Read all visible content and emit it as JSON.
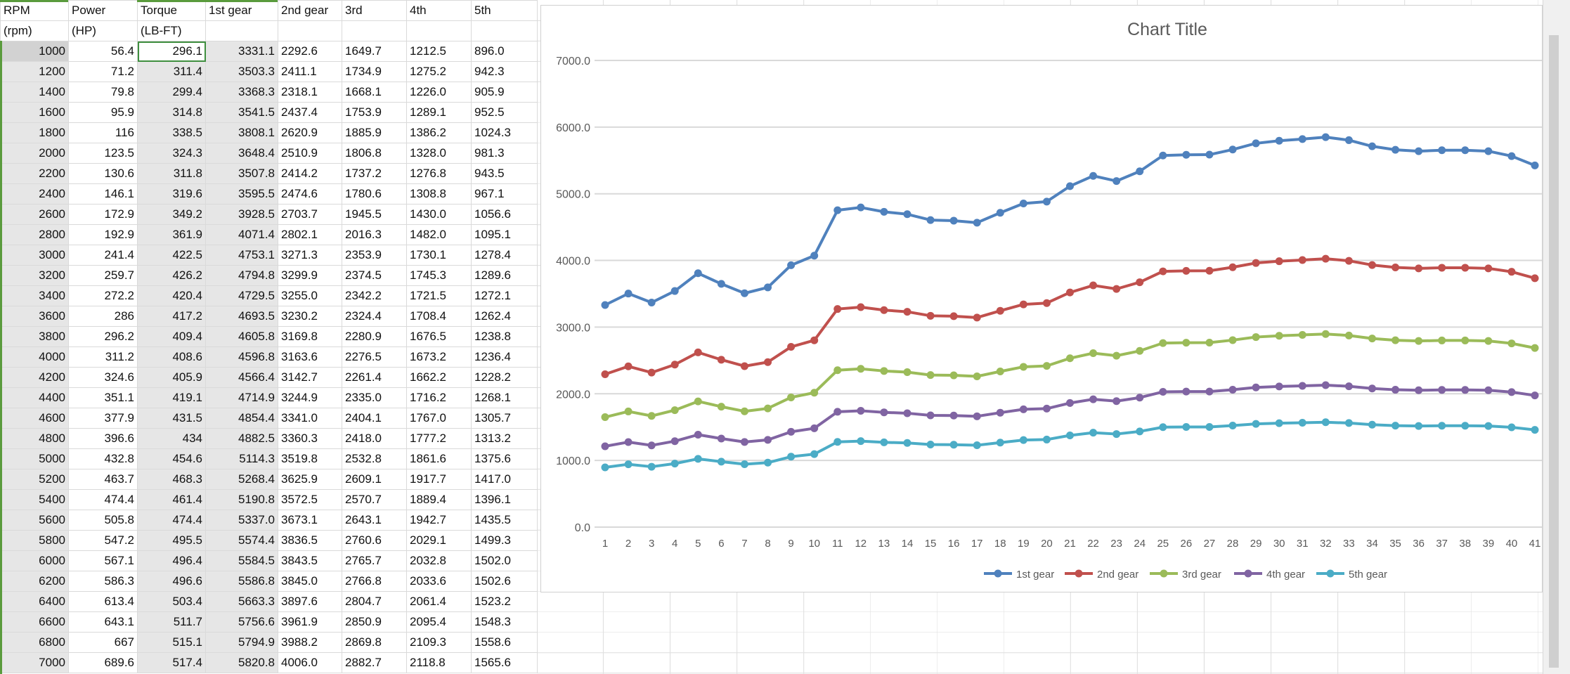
{
  "sheet": {
    "headers_row1": [
      "RPM",
      "Power",
      "Torque",
      "1st gear",
      "2nd gear",
      "3rd",
      "4th",
      "5th"
    ],
    "headers_row2": [
      "(rpm)",
      "(HP)",
      "(LB-FT)",
      "",
      "",
      "",
      "",
      ""
    ],
    "rows": [
      [
        "1000",
        "56.4",
        "296.1",
        "3331.1",
        "2292.6",
        "1649.7",
        "1212.5",
        "896.0"
      ],
      [
        "1200",
        "71.2",
        "311.4",
        "3503.3",
        "2411.1",
        "1734.9",
        "1275.2",
        "942.3"
      ],
      [
        "1400",
        "79.8",
        "299.4",
        "3368.3",
        "2318.1",
        "1668.1",
        "1226.0",
        "905.9"
      ],
      [
        "1600",
        "95.9",
        "314.8",
        "3541.5",
        "2437.4",
        "1753.9",
        "1289.1",
        "952.5"
      ],
      [
        "1800",
        "116",
        "338.5",
        "3808.1",
        "2620.9",
        "1885.9",
        "1386.2",
        "1024.3"
      ],
      [
        "2000",
        "123.5",
        "324.3",
        "3648.4",
        "2510.9",
        "1806.8",
        "1328.0",
        "981.3"
      ],
      [
        "2200",
        "130.6",
        "311.8",
        "3507.8",
        "2414.2",
        "1737.2",
        "1276.8",
        "943.5"
      ],
      [
        "2400",
        "146.1",
        "319.6",
        "3595.5",
        "2474.6",
        "1780.6",
        "1308.8",
        "967.1"
      ],
      [
        "2600",
        "172.9",
        "349.2",
        "3928.5",
        "2703.7",
        "1945.5",
        "1430.0",
        "1056.6"
      ],
      [
        "2800",
        "192.9",
        "361.9",
        "4071.4",
        "2802.1",
        "2016.3",
        "1482.0",
        "1095.1"
      ],
      [
        "3000",
        "241.4",
        "422.5",
        "4753.1",
        "3271.3",
        "2353.9",
        "1730.1",
        "1278.4"
      ],
      [
        "3200",
        "259.7",
        "426.2",
        "4794.8",
        "3299.9",
        "2374.5",
        "1745.3",
        "1289.6"
      ],
      [
        "3400",
        "272.2",
        "420.4",
        "4729.5",
        "3255.0",
        "2342.2",
        "1721.5",
        "1272.1"
      ],
      [
        "3600",
        "286",
        "417.2",
        "4693.5",
        "3230.2",
        "2324.4",
        "1708.4",
        "1262.4"
      ],
      [
        "3800",
        "296.2",
        "409.4",
        "4605.8",
        "3169.8",
        "2280.9",
        "1676.5",
        "1238.8"
      ],
      [
        "4000",
        "311.2",
        "408.6",
        "4596.8",
        "3163.6",
        "2276.5",
        "1673.2",
        "1236.4"
      ],
      [
        "4200",
        "324.6",
        "405.9",
        "4566.4",
        "3142.7",
        "2261.4",
        "1662.2",
        "1228.2"
      ],
      [
        "4400",
        "351.1",
        "419.1",
        "4714.9",
        "3244.9",
        "2335.0",
        "1716.2",
        "1268.1"
      ],
      [
        "4600",
        "377.9",
        "431.5",
        "4854.4",
        "3341.0",
        "2404.1",
        "1767.0",
        "1305.7"
      ],
      [
        "4800",
        "396.6",
        "434",
        "4882.5",
        "3360.3",
        "2418.0",
        "1777.2",
        "1313.2"
      ],
      [
        "5000",
        "432.8",
        "454.6",
        "5114.3",
        "3519.8",
        "2532.8",
        "1861.6",
        "1375.6"
      ],
      [
        "5200",
        "463.7",
        "468.3",
        "5268.4",
        "3625.9",
        "2609.1",
        "1917.7",
        "1417.0"
      ],
      [
        "5400",
        "474.4",
        "461.4",
        "5190.8",
        "3572.5",
        "2570.7",
        "1889.4",
        "1396.1"
      ],
      [
        "5600",
        "505.8",
        "474.4",
        "5337.0",
        "3673.1",
        "2643.1",
        "1942.7",
        "1435.5"
      ],
      [
        "5800",
        "547.2",
        "495.5",
        "5574.4",
        "3836.5",
        "2760.6",
        "2029.1",
        "1499.3"
      ],
      [
        "6000",
        "567.1",
        "496.4",
        "5584.5",
        "3843.5",
        "2765.7",
        "2032.8",
        "1502.0"
      ],
      [
        "6200",
        "586.3",
        "496.6",
        "5586.8",
        "3845.0",
        "2766.8",
        "2033.6",
        "1502.6"
      ],
      [
        "6400",
        "613.4",
        "503.4",
        "5663.3",
        "3897.6",
        "2804.7",
        "2061.4",
        "1523.2"
      ],
      [
        "6600",
        "643.1",
        "511.7",
        "5756.6",
        "3961.9",
        "2850.9",
        "2095.4",
        "1548.3"
      ],
      [
        "6800",
        "667",
        "515.1",
        "5794.9",
        "3988.2",
        "2869.8",
        "2109.3",
        "1558.6"
      ],
      [
        "7000",
        "689.6",
        "517.4",
        "5820.8",
        "4006.0",
        "2882.7",
        "2118.8",
        "1565.6"
      ]
    ]
  },
  "chart_data": {
    "type": "line",
    "title": "Chart Title",
    "xlabel": "",
    "ylabel": "",
    "x": [
      1,
      2,
      3,
      4,
      5,
      6,
      7,
      8,
      9,
      10,
      11,
      12,
      13,
      14,
      15,
      16,
      17,
      18,
      19,
      20,
      21,
      22,
      23,
      24,
      25,
      26,
      27,
      28,
      29,
      30,
      31,
      32,
      33,
      34,
      35,
      36,
      37,
      38,
      39,
      40,
      41
    ],
    "ylim": [
      0,
      7000
    ],
    "yticks": [
      "0.0",
      "1000.0",
      "2000.0",
      "3000.0",
      "4000.0",
      "5000.0",
      "6000.0",
      "7000.0"
    ],
    "grid": true,
    "legend_position": "bottom",
    "series": [
      {
        "name": "1st gear",
        "color": "#4f81bd",
        "values": [
          3331.1,
          3503.3,
          3368.3,
          3541.5,
          3808.1,
          3648.4,
          3507.8,
          3595.5,
          3928.5,
          4071.4,
          4753.1,
          4794.8,
          4729.5,
          4693.5,
          4605.8,
          4596.8,
          4566.4,
          4714.9,
          4854.4,
          4882.5,
          5114.3,
          5268.4,
          5190.8,
          5337.0,
          5574.4,
          5584.5,
          5586.8,
          5663.3,
          5756.6,
          5794.9,
          5820.8,
          5849,
          5804,
          5712,
          5660,
          5639,
          5653,
          5653,
          5639,
          5565,
          5425
        ]
      },
      {
        "name": "2nd gear",
        "color": "#c0504d",
        "values": [
          2292.6,
          2411.1,
          2318.1,
          2437.4,
          2620.9,
          2510.9,
          2414.2,
          2474.6,
          2703.7,
          2802.1,
          3271.3,
          3299.9,
          3255.0,
          3230.2,
          3169.8,
          3163.6,
          3142.7,
          3244.9,
          3341.0,
          3360.3,
          3519.8,
          3625.9,
          3572.5,
          3673.1,
          3836.5,
          3843.5,
          3845.0,
          3897.6,
          3961.9,
          3988.2,
          4006.0,
          4025.5,
          3994.5,
          3931.2,
          3895.4,
          3880.9,
          3890.6,
          3890.6,
          3880.9,
          3830.0,
          3733.6
        ]
      },
      {
        "name": "3rd gear",
        "color": "#9bbb59",
        "values": [
          1649.7,
          1734.9,
          1668.1,
          1753.9,
          1885.9,
          1806.8,
          1737.2,
          1780.6,
          1945.5,
          2016.3,
          2353.9,
          2374.5,
          2342.2,
          2324.4,
          2280.9,
          2276.5,
          2261.4,
          2335.0,
          2404.1,
          2418.0,
          2532.8,
          2609.1,
          2570.7,
          2643.1,
          2760.6,
          2765.7,
          2766.8,
          2804.7,
          2850.9,
          2869.8,
          2882.7,
          2896.7,
          2874.4,
          2828.8,
          2803.1,
          2792.7,
          2799.6,
          2799.6,
          2792.7,
          2756.0,
          2686.7
        ]
      },
      {
        "name": "4th gear",
        "color": "#8064a2",
        "values": [
          1212.5,
          1275.2,
          1226.0,
          1289.1,
          1386.2,
          1328.0,
          1276.8,
          1308.8,
          1430.0,
          1482.0,
          1730.1,
          1745.3,
          1721.5,
          1708.4,
          1676.5,
          1673.2,
          1662.2,
          1716.2,
          1767.0,
          1777.2,
          1861.6,
          1917.7,
          1889.4,
          1942.7,
          2029.1,
          2032.8,
          2033.6,
          2061.4,
          2095.4,
          2109.3,
          2118.8,
          2129.1,
          2112.7,
          2079.2,
          2060.3,
          2052.6,
          2057.7,
          2057.7,
          2052.6,
          2025.7,
          1974.8
        ]
      },
      {
        "name": "5th gear",
        "color": "#4bacc6",
        "values": [
          896.0,
          942.3,
          905.9,
          952.5,
          1024.3,
          981.3,
          943.5,
          967.1,
          1056.6,
          1095.1,
          1278.4,
          1289.6,
          1272.1,
          1262.4,
          1238.8,
          1236.4,
          1228.2,
          1268.1,
          1305.7,
          1313.2,
          1375.6,
          1417.0,
          1396.1,
          1435.5,
          1499.3,
          1502.0,
          1502.6,
          1523.2,
          1548.3,
          1558.6,
          1565.6,
          1573.2,
          1561.1,
          1536.4,
          1522.4,
          1516.7,
          1520.5,
          1520.5,
          1516.7,
          1496.8,
          1459.2
        ]
      }
    ]
  }
}
